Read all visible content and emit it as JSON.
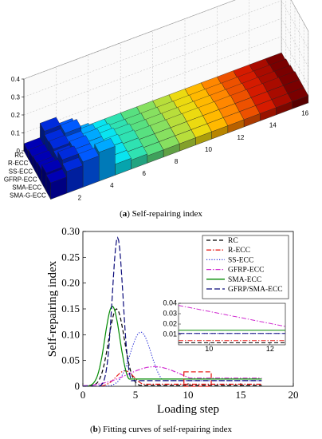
{
  "chart_data": [
    {
      "type": "bar3d",
      "panel_letter": "a",
      "caption": "Self-repairing index",
      "row_labels": [
        "RC",
        "R-ECC",
        "SS-ECC",
        "GFRP-ECC",
        "SMA-ECC",
        "SMA-G-ECC"
      ],
      "x_tick_labels": [
        "2",
        "4",
        "6",
        "8",
        "10",
        "12",
        "14",
        "16"
      ],
      "z_tick_labels": [
        "0",
        "0.1",
        "0.2",
        "0.3",
        "0.4"
      ],
      "zlim": [
        0,
        0.4
      ],
      "color_ramp": [
        "#0000b4",
        "#0050ff",
        "#00e5ff",
        "#46e08c",
        "#9ee050",
        "#ffd800",
        "#ff7a00",
        "#d21400",
        "#7a0000"
      ],
      "heights": [
        [
          0.04,
          0.12,
          0.08,
          0.02,
          0.01,
          0.01,
          0.01,
          0.01,
          0.01,
          0.01,
          0.01,
          0.01,
          0.01,
          0.01,
          0.01,
          0.01
        ],
        [
          0.05,
          0.1,
          0.12,
          0.06,
          0.03,
          0.02,
          0.02,
          0.02,
          0.02,
          0.02,
          0.02,
          0.02,
          0.02,
          0.02,
          0.02,
          0.02
        ],
        [
          0.06,
          0.11,
          0.1,
          0.08,
          0.05,
          0.04,
          0.03,
          0.03,
          0.03,
          0.03,
          0.03,
          0.03,
          0.03,
          0.03,
          0.03,
          0.03
        ],
        [
          0.07,
          0.1,
          0.12,
          0.08,
          0.06,
          0.05,
          0.04,
          0.04,
          0.04,
          0.04,
          0.04,
          0.04,
          0.04,
          0.04,
          0.04,
          0.04
        ],
        [
          0.1,
          0.14,
          0.12,
          0.08,
          0.06,
          0.05,
          0.04,
          0.04,
          0.04,
          0.04,
          0.04,
          0.04,
          0.04,
          0.04,
          0.04,
          0.04
        ],
        [
          0.09,
          0.12,
          0.14,
          0.16,
          0.06,
          0.05,
          0.04,
          0.04,
          0.04,
          0.04,
          0.04,
          0.04,
          0.04,
          0.04,
          0.04,
          0.04
        ]
      ]
    },
    {
      "type": "line",
      "panel_letter": "b",
      "caption": "Fitting curves of self-repairing index",
      "xlabel": "Loading step",
      "ylabel": "Self-repairing index",
      "xlim": [
        0,
        20
      ],
      "ylim": [
        0,
        0.3
      ],
      "x_ticks": [
        0,
        5,
        10,
        15,
        20
      ],
      "y_ticks": [
        "0",
        "0.05",
        "0.10",
        "0.15",
        "0.20",
        "0.25",
        "0.30"
      ],
      "legend_position": "top-right",
      "series": [
        {
          "name": "RC",
          "color": "#000000",
          "dash": "dashed",
          "peak_x": 3.2,
          "peak_y": 0.15,
          "width": 1.05,
          "tail": 0.002,
          "tail_x": 4.2
        },
        {
          "name": "R-ECC",
          "color": "#e8211d",
          "dash": "dashdot",
          "peak_x": 4.0,
          "peak_y": 0.03,
          "width": 1.2,
          "tail": 0.004,
          "tail_x": 5.0
        },
        {
          "name": "SS-ECC",
          "color": "#2b32d8",
          "dash": "dotted",
          "peak_x": 5.5,
          "peak_y": 0.105,
          "width": 1.4,
          "tail": 0.011,
          "tail_x": 6.8
        },
        {
          "name": "GFRP-ECC",
          "color": "#d02ad0",
          "dash": "dashdot",
          "peak_x": 6.8,
          "peak_y": 0.038,
          "width": 3.6,
          "tail": 0.016,
          "tail_x": 9.0
        },
        {
          "name": "SMA-ECC",
          "color": "#008a00",
          "dash": "solid",
          "peak_x": 2.8,
          "peak_y": 0.155,
          "width": 1.0,
          "tail": 0.014,
          "tail_x": 3.8
        },
        {
          "name": "GFRP/SMA-ECC",
          "color": "#0a0a7a",
          "dash": "longdash",
          "peak_x": 3.3,
          "peak_y": 0.288,
          "width": 0.72,
          "tail": 0.011,
          "tail_x": 4.2
        }
      ],
      "inset": {
        "xlim": [
          9,
          12.5
        ],
        "ylim": [
          0,
          0.04
        ],
        "x_ticks": [
          "10",
          "12"
        ],
        "y_ticks": [
          "0.01",
          "0.02",
          "0.03",
          "0.04"
        ],
        "highlight_box": {
          "x": [
            9.6,
            12.2
          ],
          "y": [
            0.0,
            0.028
          ]
        }
      }
    }
  ]
}
